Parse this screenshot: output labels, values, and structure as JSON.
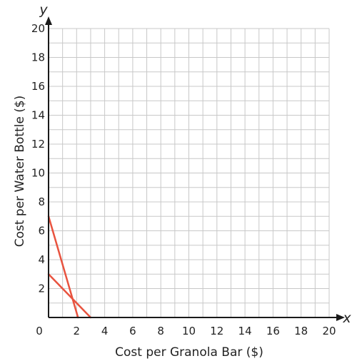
{
  "chart_data": {
    "type": "line",
    "xlabel": "Cost per Granola Bar ($)",
    "ylabel": "Cost per Water Bottle ($)",
    "x_var": "x",
    "y_var": "y",
    "xlim": [
      0,
      20
    ],
    "ylim": [
      0,
      20
    ],
    "grid": true,
    "minor_grid_step": 1,
    "x_ticks": [
      0,
      2,
      4,
      6,
      8,
      10,
      12,
      14,
      16,
      18,
      20
    ],
    "y_ticks": [
      2,
      4,
      6,
      8,
      10,
      12,
      14,
      16,
      18,
      20
    ],
    "origin_label": "0",
    "series": [
      {
        "x": [
          0,
          2.1
        ],
        "y": [
          7,
          0
        ],
        "color": "#e8533f"
      },
      {
        "x": [
          0,
          3
        ],
        "y": [
          3,
          0
        ],
        "color": "#e8533f"
      }
    ]
  }
}
